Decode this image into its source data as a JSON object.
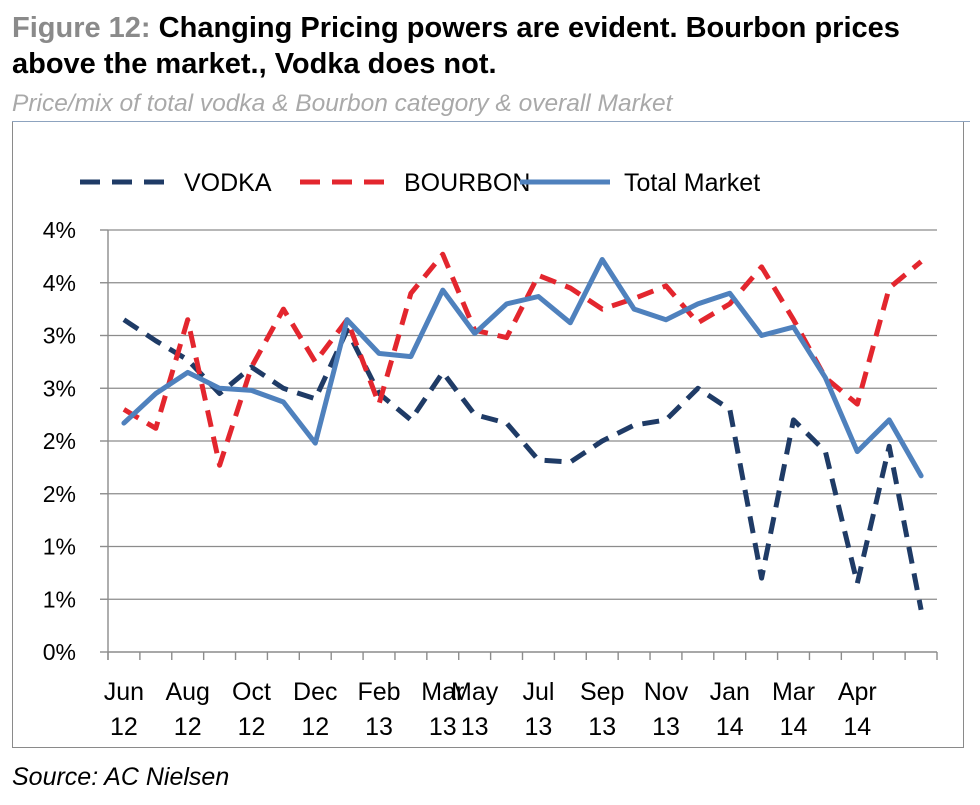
{
  "figure": {
    "label": "Figure 12:",
    "title": "Changing Pricing powers are evident. Bourbon prices above the market., Vodka does not.",
    "subtitle": "Price/mix of total vodka & Bourbon category & overall Market",
    "source": "Source: AC Nielsen"
  },
  "chart_data": {
    "type": "line",
    "y_tick_labels": [
      "0%",
      "1%",
      "1%",
      "2%",
      "2%",
      "3%",
      "3%",
      "4%",
      "4%"
    ],
    "ylim": [
      0,
      4
    ],
    "grid": true,
    "legend_position": "top",
    "x_tick_labels": [
      [
        "Jun",
        "12"
      ],
      [
        "Aug",
        "12"
      ],
      [
        "Oct",
        "12"
      ],
      [
        "Dec",
        "12"
      ],
      [
        "Feb",
        "13"
      ],
      [
        "Mar",
        "13"
      ],
      [
        "May",
        "13"
      ],
      [
        "Jul",
        "13"
      ],
      [
        "Sep",
        "13"
      ],
      [
        "Nov",
        "13"
      ],
      [
        "Jan",
        "14"
      ],
      [
        "Mar",
        "14"
      ],
      [
        "Apr",
        "14"
      ]
    ],
    "x_tick_label_slots": [
      0,
      2,
      4,
      6,
      8,
      10,
      11,
      13,
      15,
      17,
      19,
      21,
      23
    ],
    "n_periods": 26,
    "series": [
      {
        "name": "VODKA",
        "color": "#1f3b66",
        "dash": true,
        "values": [
          3.15,
          2.95,
          2.77,
          2.45,
          2.7,
          2.5,
          2.4,
          3.05,
          2.45,
          2.2,
          2.65,
          2.25,
          2.17,
          1.82,
          1.8,
          2.0,
          2.15,
          2.2,
          2.5,
          2.3,
          0.7,
          2.2,
          1.9,
          0.65,
          1.95,
          0.4
        ]
      },
      {
        "name": "BOURBON",
        "color": "#e3262e",
        "dash": true,
        "values": [
          2.3,
          2.12,
          3.15,
          1.77,
          2.7,
          3.25,
          2.75,
          3.15,
          2.35,
          3.4,
          3.77,
          3.05,
          2.98,
          3.57,
          3.45,
          3.25,
          3.35,
          3.47,
          3.12,
          3.3,
          3.65,
          3.15,
          2.6,
          2.35,
          3.45,
          3.7
        ]
      },
      {
        "name": "Total Market",
        "color": "#4f81bd",
        "dash": false,
        "values": [
          2.17,
          2.45,
          2.65,
          2.5,
          2.48,
          2.37,
          1.98,
          3.15,
          2.83,
          2.8,
          3.43,
          3.02,
          3.3,
          3.37,
          3.12,
          3.72,
          3.25,
          3.15,
          3.3,
          3.4,
          3.0,
          3.08,
          2.6,
          1.9,
          2.2,
          1.67
        ]
      }
    ]
  }
}
